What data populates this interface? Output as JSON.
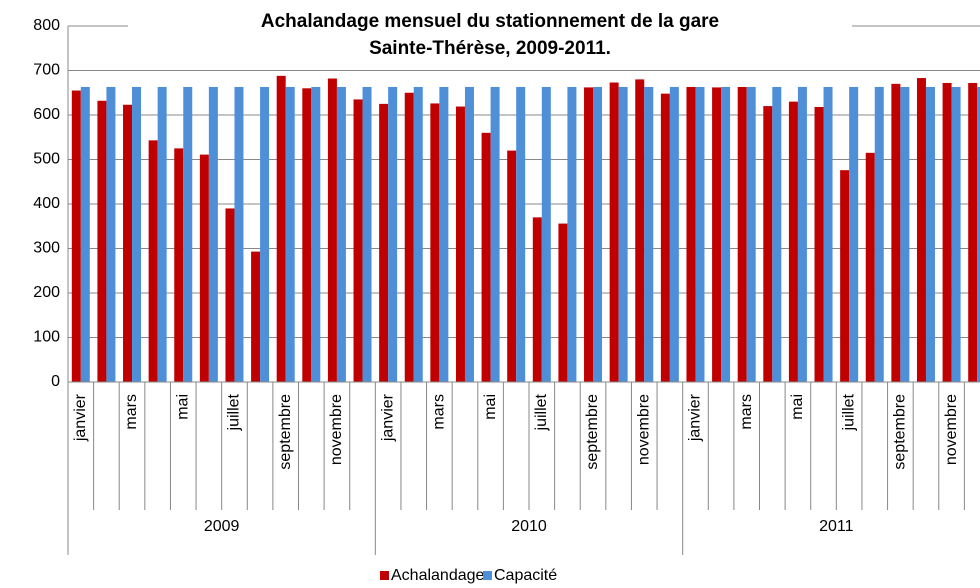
{
  "chart_data": {
    "type": "bar",
    "title": [
      "Achalandage mensuel du stationnement de la gare",
      "Sainte-Thérèse, 2009-2011."
    ],
    "categories": [
      "janvier",
      null,
      "mars",
      null,
      "mai",
      null,
      "juillet",
      null,
      "septembre",
      null,
      "novembre",
      null,
      "janvier",
      null,
      "mars",
      null,
      "mai",
      null,
      "juillet",
      null,
      "septembre",
      null,
      "novembre",
      null,
      "janvier",
      null,
      "mars",
      null,
      "mai",
      null,
      "juillet",
      null,
      "septembre",
      null,
      "novembre",
      null
    ],
    "groups": [
      "2009",
      "2010",
      "2011"
    ],
    "series": [
      {
        "name": "Achalandage",
        "color": "#c00000",
        "values": [
          655,
          632,
          623,
          543,
          525,
          511,
          390,
          293,
          688,
          660,
          682,
          635,
          625,
          650,
          626,
          619,
          560,
          520,
          370,
          356,
          662,
          673,
          680,
          648,
          663,
          662,
          663,
          620,
          630,
          618,
          476,
          515,
          670,
          683,
          672,
          672
        ]
      },
      {
        "name": "Capacité",
        "color": "#4f8fd8",
        "values": [
          663,
          663,
          663,
          663,
          663,
          663,
          663,
          663,
          663,
          663,
          663,
          663,
          663,
          663,
          663,
          663,
          663,
          663,
          663,
          663,
          663,
          663,
          663,
          663,
          663,
          663,
          663,
          663,
          663,
          663,
          663,
          663,
          663,
          663,
          663,
          663
        ]
      }
    ],
    "ylim": [
      0,
      800
    ],
    "yticks": [
      0,
      100,
      200,
      300,
      400,
      500,
      600,
      700,
      800
    ],
    "grid": true,
    "legend": "bottom"
  }
}
